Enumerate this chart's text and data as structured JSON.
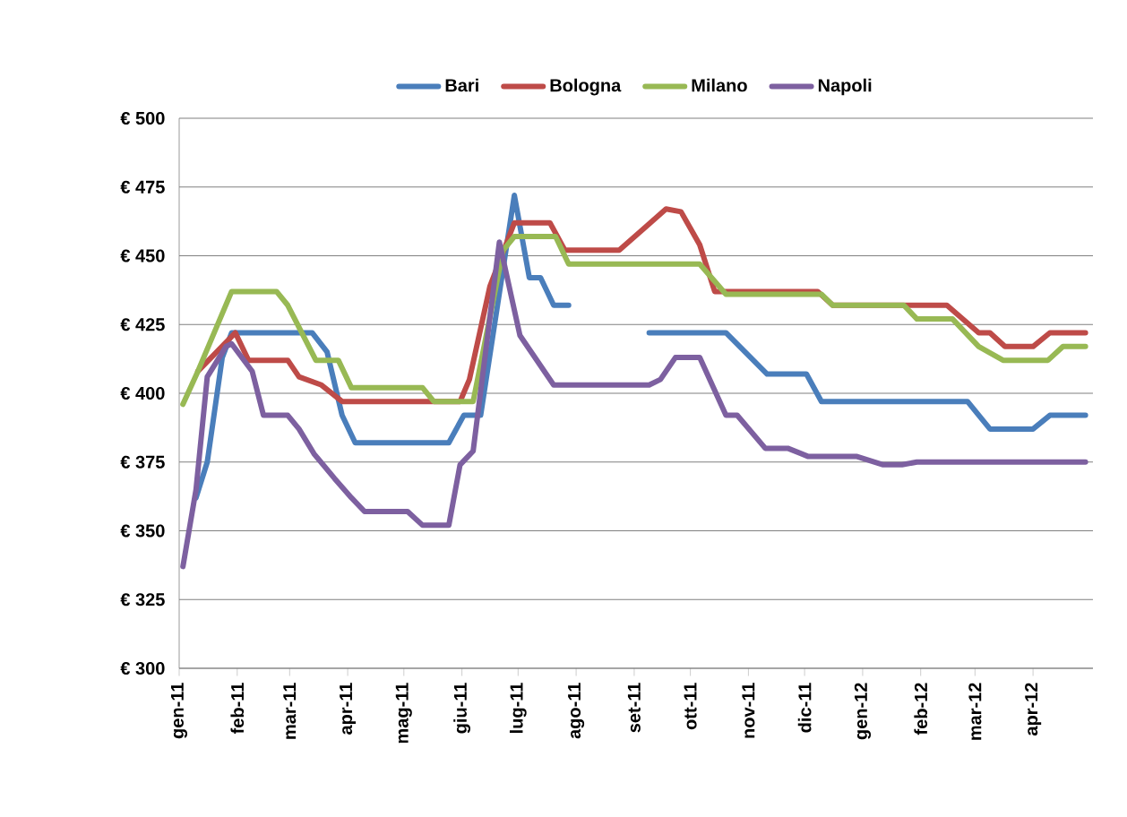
{
  "chart_data": {
    "type": "line",
    "legend": "top",
    "grid": "y",
    "marker": "none",
    "line_style": "solid",
    "xlim": [
      "2011-01-01",
      "2012-05-03"
    ],
    "xticks": [
      {
        "value": "2011-01-01",
        "label": "gen-11"
      },
      {
        "value": "2011-02-01",
        "label": "feb-11"
      },
      {
        "value": "2011-03-01",
        "label": "mar-11"
      },
      {
        "value": "2011-04-01",
        "label": "apr-11"
      },
      {
        "value": "2011-05-01",
        "label": "mag-11"
      },
      {
        "value": "2011-06-01",
        "label": "giu-11"
      },
      {
        "value": "2011-07-01",
        "label": "lug-11"
      },
      {
        "value": "2011-08-01",
        "label": "ago-11"
      },
      {
        "value": "2011-09-01",
        "label": "set-11"
      },
      {
        "value": "2011-10-01",
        "label": "ott-11"
      },
      {
        "value": "2011-11-01",
        "label": "nov-11"
      },
      {
        "value": "2011-12-01",
        "label": "dic-11"
      },
      {
        "value": "2012-01-01",
        "label": "gen-12"
      },
      {
        "value": "2012-02-01",
        "label": "feb-12"
      },
      {
        "value": "2012-03-01",
        "label": "mar-12"
      },
      {
        "value": "2012-04-01",
        "label": "apr-12"
      }
    ],
    "ylim": [
      300,
      500
    ],
    "yticks": [
      {
        "value": 300,
        "label": "€ 300"
      },
      {
        "value": 325,
        "label": "€ 325"
      },
      {
        "value": 350,
        "label": "€ 350"
      },
      {
        "value": 375,
        "label": "€ 375"
      },
      {
        "value": 400,
        "label": "€ 400"
      },
      {
        "value": 425,
        "label": "€ 425"
      },
      {
        "value": 450,
        "label": "€ 450"
      },
      {
        "value": 475,
        "label": "€ 475"
      },
      {
        "value": 500,
        "label": "€ 500"
      }
    ],
    "series": [
      {
        "name": "Bari",
        "color": "#4a7ebb",
        "x": [
          "2011-01-10",
          "2011-01-16",
          "2011-01-24",
          "2011-01-29",
          "2011-03-13",
          "2011-03-21",
          "2011-03-29",
          "2011-04-05",
          "2011-05-25",
          "2011-06-02",
          "2011-06-11",
          "2011-06-29",
          "2011-07-07",
          "2011-07-13",
          "2011-07-20",
          "2011-07-28",
          "2011-08-15",
          "2011-09-09",
          "2011-10-20",
          "2011-11-11",
          "2011-12-02",
          "2011-12-10",
          "2012-02-26",
          "2012-03-09",
          "2012-04-01",
          "2012-04-10",
          "2012-04-29"
        ],
        "values": [
          362,
          375,
          413,
          422,
          422,
          415,
          392,
          382,
          382,
          392,
          392,
          472,
          442,
          442,
          432,
          432,
          null,
          422,
          422,
          407,
          407,
          397,
          397,
          387,
          387,
          392,
          392
        ]
      },
      {
        "name": "Bologna",
        "color": "#be4b48",
        "x": [
          "2011-01-11",
          "2011-01-31",
          "2011-02-07",
          "2011-02-28",
          "2011-03-06",
          "2011-03-18",
          "2011-03-29",
          "2011-05-31",
          "2011-06-05",
          "2011-06-16",
          "2011-06-29",
          "2011-07-18",
          "2011-07-26",
          "2011-08-24",
          "2011-09-18",
          "2011-09-26",
          "2011-10-06",
          "2011-10-14",
          "2011-12-08",
          "2011-12-16",
          "2012-02-15",
          "2012-03-03",
          "2012-03-09",
          "2012-03-17",
          "2012-04-01",
          "2012-04-10",
          "2012-04-29"
        ],
        "values": [
          408,
          422,
          412,
          412,
          406,
          403,
          397,
          397,
          405,
          439,
          462,
          462,
          452,
          452,
          467,
          466,
          454,
          437,
          437,
          432,
          432,
          422,
          422,
          417,
          417,
          422,
          422
        ]
      },
      {
        "name": "Milano",
        "color": "#98b954",
        "x": [
          "2011-01-03",
          "2011-01-11",
          "2011-01-29",
          "2011-02-22",
          "2011-02-28",
          "2011-03-15",
          "2011-03-27",
          "2011-04-03",
          "2011-05-11",
          "2011-05-17",
          "2011-06-07",
          "2011-06-23",
          "2011-06-29",
          "2011-07-21",
          "2011-07-28",
          "2011-10-06",
          "2011-10-20",
          "2011-12-10",
          "2011-12-16",
          "2012-01-23",
          "2012-01-30",
          "2012-02-18",
          "2012-03-03",
          "2012-03-16",
          "2012-04-09",
          "2012-04-17",
          "2012-04-29"
        ],
        "values": [
          396,
          408,
          437,
          437,
          432,
          412,
          412,
          402,
          402,
          397,
          397,
          452,
          457,
          457,
          447,
          447,
          436,
          436,
          432,
          432,
          427,
          427,
          417,
          412,
          412,
          417,
          417
        ]
      },
      {
        "name": "Napoli",
        "color": "#7d60a0",
        "x": [
          "2011-01-03",
          "2011-01-10",
          "2011-01-16",
          "2011-01-26",
          "2011-01-29",
          "2011-02-09",
          "2011-02-15",
          "2011-02-28",
          "2011-03-06",
          "2011-03-14",
          "2011-03-25",
          "2011-04-03",
          "2011-04-10",
          "2011-05-03",
          "2011-05-11",
          "2011-05-25",
          "2011-05-31",
          "2011-06-07",
          "2011-06-21",
          "2011-07-02",
          "2011-07-20",
          "2011-09-09",
          "2011-09-15",
          "2011-09-23",
          "2011-10-06",
          "2011-10-20",
          "2011-10-26",
          "2011-11-10",
          "2011-11-22",
          "2011-12-03",
          "2011-12-29",
          "2012-01-12",
          "2012-01-22",
          "2012-01-30",
          "2012-04-29"
        ],
        "values": [
          337,
          365,
          406,
          417,
          418,
          408,
          392,
          392,
          387,
          378,
          369,
          362,
          357,
          357,
          352,
          352,
          374,
          379,
          455,
          421,
          403,
          403,
          405,
          413,
          413,
          392,
          392,
          380,
          380,
          377,
          377,
          374,
          374,
          375,
          375
        ]
      }
    ]
  }
}
